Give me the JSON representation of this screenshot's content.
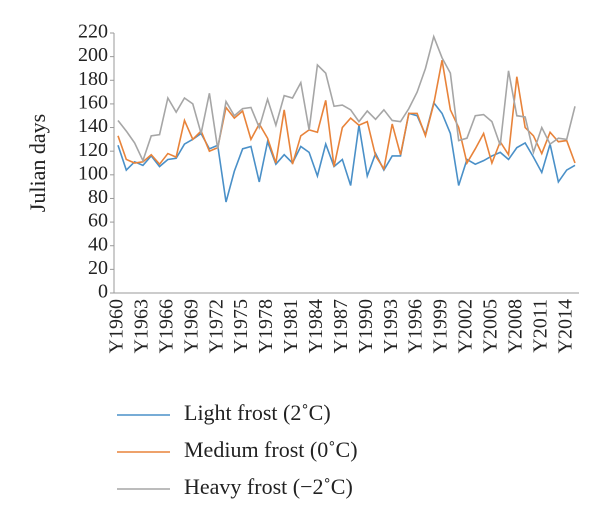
{
  "chart_data": {
    "type": "line",
    "ylabel": "Julian days",
    "categories": [
      "Y1960",
      null,
      null,
      "Y1963",
      null,
      null,
      "Y1966",
      null,
      null,
      "Y1969",
      null,
      null,
      "Y1972",
      null,
      null,
      "Y1975",
      null,
      null,
      "Y1978",
      null,
      null,
      "Y1981",
      null,
      null,
      "Y1984",
      null,
      null,
      "Y1987",
      null,
      null,
      "Y1990",
      null,
      null,
      "Y1993",
      null,
      null,
      "Y1996",
      null,
      null,
      "Y1999",
      null,
      null,
      "Y2002",
      null,
      null,
      "Y2005",
      null,
      null,
      "Y2008",
      null,
      null,
      "Y2011",
      null,
      null,
      "Y2014",
      null
    ],
    "series": [
      {
        "name": "Light frost (2˚C)",
        "color": "#4a90c8",
        "values": [
          125,
          104,
          111,
          108,
          116,
          107,
          113,
          114,
          126,
          130,
          135,
          122,
          125,
          77,
          103,
          122,
          124,
          94,
          128,
          109,
          117,
          110,
          124,
          119,
          99,
          126,
          107,
          113,
          91,
          142,
          99,
          118,
          104,
          116,
          116,
          152,
          150,
          134,
          161,
          152,
          135,
          91,
          113,
          109,
          112,
          116,
          119,
          113,
          123,
          127,
          115,
          102,
          126,
          94,
          104,
          108
        ]
      },
      {
        "name": "Medium frost (0˚C)",
        "color": "#e8833a",
        "values": [
          133,
          113,
          110,
          111,
          117,
          109,
          118,
          115,
          146,
          130,
          137,
          120,
          123,
          157,
          148,
          154,
          130,
          143,
          131,
          110,
          155,
          109,
          133,
          138,
          136,
          163,
          107,
          140,
          148,
          142,
          145,
          116,
          105,
          143,
          117,
          152,
          152,
          133,
          160,
          197,
          155,
          140,
          110,
          122,
          135,
          110,
          128,
          117,
          183,
          140,
          133,
          118,
          136,
          128,
          129,
          110
        ]
      },
      {
        "name": "Heavy frost (−2˚C)",
        "color": "#a6a6a6",
        "values": [
          146,
          137,
          127,
          112,
          133,
          134,
          165,
          153,
          165,
          160,
          135,
          169,
          122,
          162,
          150,
          156,
          157,
          140,
          164,
          142,
          167,
          165,
          178,
          138,
          193,
          186,
          158,
          159,
          155,
          145,
          154,
          147,
          155,
          146,
          145,
          156,
          170,
          190,
          217,
          199,
          186,
          129,
          131,
          150,
          151,
          145,
          125,
          188,
          150,
          149,
          119,
          140,
          126,
          131,
          130,
          158
        ]
      }
    ],
    "ylim": [
      0,
      220
    ],
    "yticks": [
      0,
      20,
      40,
      60,
      80,
      100,
      120,
      140,
      160,
      180,
      200,
      220
    ]
  }
}
